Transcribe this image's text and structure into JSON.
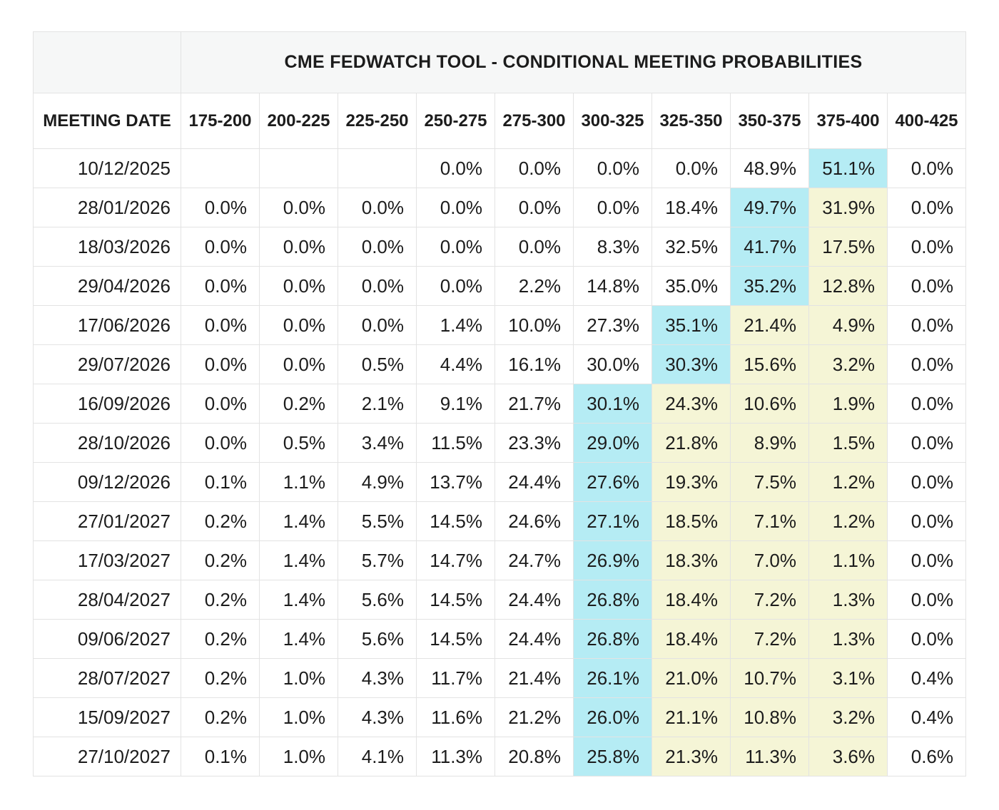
{
  "chart_data": {
    "type": "table",
    "title": "CME FEDWATCH TOOL - CONDITIONAL MEETING PROBABILITIES",
    "row_header": "MEETING DATE",
    "columns": [
      "175-200",
      "200-225",
      "225-250",
      "250-275",
      "275-300",
      "300-325",
      "325-350",
      "350-375",
      "375-400",
      "400-425"
    ],
    "rows": [
      {
        "date": "10/12/2025",
        "values": [
          "",
          "",
          "",
          "0.0%",
          "0.0%",
          "0.0%",
          "0.0%",
          "48.9%",
          "51.1%",
          "0.0%"
        ],
        "hl": [
          "",
          "",
          "",
          "",
          "",
          "",
          "",
          "",
          "c",
          ""
        ]
      },
      {
        "date": "28/01/2026",
        "values": [
          "0.0%",
          "0.0%",
          "0.0%",
          "0.0%",
          "0.0%",
          "0.0%",
          "18.4%",
          "49.7%",
          "31.9%",
          "0.0%"
        ],
        "hl": [
          "",
          "",
          "",
          "",
          "",
          "",
          "",
          "c",
          "y",
          ""
        ]
      },
      {
        "date": "18/03/2026",
        "values": [
          "0.0%",
          "0.0%",
          "0.0%",
          "0.0%",
          "0.0%",
          "8.3%",
          "32.5%",
          "41.7%",
          "17.5%",
          "0.0%"
        ],
        "hl": [
          "",
          "",
          "",
          "",
          "",
          "",
          "",
          "c",
          "y",
          ""
        ]
      },
      {
        "date": "29/04/2026",
        "values": [
          "0.0%",
          "0.0%",
          "0.0%",
          "0.0%",
          "2.2%",
          "14.8%",
          "35.0%",
          "35.2%",
          "12.8%",
          "0.0%"
        ],
        "hl": [
          "",
          "",
          "",
          "",
          "",
          "",
          "",
          "c",
          "y",
          ""
        ]
      },
      {
        "date": "17/06/2026",
        "values": [
          "0.0%",
          "0.0%",
          "0.0%",
          "1.4%",
          "10.0%",
          "27.3%",
          "35.1%",
          "21.4%",
          "4.9%",
          "0.0%"
        ],
        "hl": [
          "",
          "",
          "",
          "",
          "",
          "",
          "c",
          "y",
          "y",
          ""
        ]
      },
      {
        "date": "29/07/2026",
        "values": [
          "0.0%",
          "0.0%",
          "0.5%",
          "4.4%",
          "16.1%",
          "30.0%",
          "30.3%",
          "15.6%",
          "3.2%",
          "0.0%"
        ],
        "hl": [
          "",
          "",
          "",
          "",
          "",
          "",
          "c",
          "y",
          "y",
          ""
        ]
      },
      {
        "date": "16/09/2026",
        "values": [
          "0.0%",
          "0.2%",
          "2.1%",
          "9.1%",
          "21.7%",
          "30.1%",
          "24.3%",
          "10.6%",
          "1.9%",
          "0.0%"
        ],
        "hl": [
          "",
          "",
          "",
          "",
          "",
          "c",
          "y",
          "y",
          "y",
          ""
        ]
      },
      {
        "date": "28/10/2026",
        "values": [
          "0.0%",
          "0.5%",
          "3.4%",
          "11.5%",
          "23.3%",
          "29.0%",
          "21.8%",
          "8.9%",
          "1.5%",
          "0.0%"
        ],
        "hl": [
          "",
          "",
          "",
          "",
          "",
          "c",
          "y",
          "y",
          "y",
          ""
        ]
      },
      {
        "date": "09/12/2026",
        "values": [
          "0.1%",
          "1.1%",
          "4.9%",
          "13.7%",
          "24.4%",
          "27.6%",
          "19.3%",
          "7.5%",
          "1.2%",
          "0.0%"
        ],
        "hl": [
          "",
          "",
          "",
          "",
          "",
          "c",
          "y",
          "y",
          "y",
          ""
        ]
      },
      {
        "date": "27/01/2027",
        "values": [
          "0.2%",
          "1.4%",
          "5.5%",
          "14.5%",
          "24.6%",
          "27.1%",
          "18.5%",
          "7.1%",
          "1.2%",
          "0.0%"
        ],
        "hl": [
          "",
          "",
          "",
          "",
          "",
          "c",
          "y",
          "y",
          "y",
          ""
        ]
      },
      {
        "date": "17/03/2027",
        "values": [
          "0.2%",
          "1.4%",
          "5.7%",
          "14.7%",
          "24.7%",
          "26.9%",
          "18.3%",
          "7.0%",
          "1.1%",
          "0.0%"
        ],
        "hl": [
          "",
          "",
          "",
          "",
          "",
          "c",
          "y",
          "y",
          "y",
          ""
        ]
      },
      {
        "date": "28/04/2027",
        "values": [
          "0.2%",
          "1.4%",
          "5.6%",
          "14.5%",
          "24.4%",
          "26.8%",
          "18.4%",
          "7.2%",
          "1.3%",
          "0.0%"
        ],
        "hl": [
          "",
          "",
          "",
          "",
          "",
          "c",
          "y",
          "y",
          "y",
          ""
        ]
      },
      {
        "date": "09/06/2027",
        "values": [
          "0.2%",
          "1.4%",
          "5.6%",
          "14.5%",
          "24.4%",
          "26.8%",
          "18.4%",
          "7.2%",
          "1.3%",
          "0.0%"
        ],
        "hl": [
          "",
          "",
          "",
          "",
          "",
          "c",
          "y",
          "y",
          "y",
          ""
        ]
      },
      {
        "date": "28/07/2027",
        "values": [
          "0.2%",
          "1.0%",
          "4.3%",
          "11.7%",
          "21.4%",
          "26.1%",
          "21.0%",
          "10.7%",
          "3.1%",
          "0.4%"
        ],
        "hl": [
          "",
          "",
          "",
          "",
          "",
          "c",
          "y",
          "y",
          "y",
          ""
        ]
      },
      {
        "date": "15/09/2027",
        "values": [
          "0.2%",
          "1.0%",
          "4.3%",
          "11.6%",
          "21.2%",
          "26.0%",
          "21.1%",
          "10.8%",
          "3.2%",
          "0.4%"
        ],
        "hl": [
          "",
          "",
          "",
          "",
          "",
          "c",
          "y",
          "y",
          "y",
          ""
        ]
      },
      {
        "date": "27/10/2027",
        "values": [
          "0.1%",
          "1.0%",
          "4.1%",
          "11.3%",
          "20.8%",
          "25.8%",
          "21.3%",
          "11.3%",
          "3.6%",
          "0.6%"
        ],
        "hl": [
          "",
          "",
          "",
          "",
          "",
          "c",
          "y",
          "y",
          "y",
          ""
        ]
      }
    ],
    "layout": {
      "legend": "off",
      "grid": "on"
    }
  },
  "colors": {
    "cyan_highlight": "#b5ecf4",
    "yellow_highlight": "#f5f5d6"
  }
}
